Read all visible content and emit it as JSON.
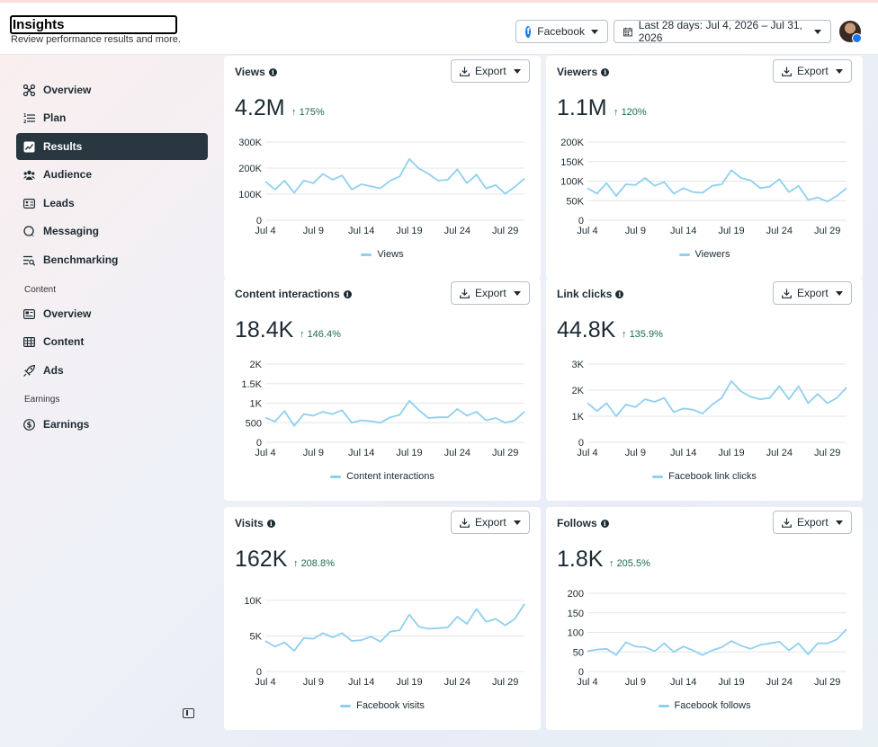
{
  "header": {
    "title": "Insights",
    "subtitle": "Review performance results and more.",
    "platform_label": "Facebook",
    "date_range_label": "Last 28 days: Jul 4, 2026 – Jul 31, 2026"
  },
  "sidebar": {
    "items": [
      {
        "label": "Overview",
        "icon": "overview-icon"
      },
      {
        "label": "Plan",
        "icon": "plan-icon"
      },
      {
        "label": "Results",
        "icon": "results-icon",
        "active": true
      },
      {
        "label": "Audience",
        "icon": "audience-icon"
      },
      {
        "label": "Leads",
        "icon": "leads-icon"
      },
      {
        "label": "Messaging",
        "icon": "messaging-icon"
      },
      {
        "label": "Benchmarking",
        "icon": "benchmarking-icon"
      }
    ],
    "content_section_label": "Content",
    "content_items": [
      {
        "label": "Overview",
        "icon": "content-overview-icon"
      },
      {
        "label": "Content",
        "icon": "content-grid-icon"
      },
      {
        "label": "Ads",
        "icon": "ads-rocket-icon"
      }
    ],
    "earnings_section_label": "Earnings",
    "earnings_items": [
      {
        "label": "Earnings",
        "icon": "dollar-icon"
      }
    ]
  },
  "export_label": "Export",
  "colors": {
    "line": "#8fd0f0",
    "positive": "#1b6e4a",
    "active_nav": "#283640"
  },
  "chart_data": [
    {
      "type": "line",
      "title": "Views",
      "total": "4.2M",
      "change": "175%",
      "x_ticks": [
        "Jul 4",
        "Jul 9",
        "Jul 14",
        "Jul 19",
        "Jul 24",
        "Jul 29"
      ],
      "y_ticks": [
        "0",
        "100K",
        "200K",
        "300K"
      ],
      "ylim": [
        0,
        300000
      ],
      "series": [
        {
          "name": "Views",
          "values": [
            148000,
            118000,
            152000,
            105000,
            152000,
            142000,
            178000,
            155000,
            172000,
            118000,
            138000,
            130000,
            122000,
            152000,
            168000,
            235000,
            198000,
            178000,
            152000,
            155000,
            195000,
            142000,
            175000,
            122000,
            135000,
            102000,
            128000,
            160000
          ]
        }
      ]
    },
    {
      "type": "line",
      "title": "Viewers",
      "total": "1.1M",
      "change": "120%",
      "x_ticks": [
        "Jul 4",
        "Jul 9",
        "Jul 14",
        "Jul 19",
        "Jul 24",
        "Jul 29"
      ],
      "y_ticks": [
        "0",
        "50K",
        "100K",
        "150K",
        "200K"
      ],
      "ylim": [
        0,
        200000
      ],
      "series": [
        {
          "name": "Viewers",
          "values": [
            82000,
            68000,
            95000,
            62000,
            92000,
            90000,
            108000,
            88000,
            98000,
            68000,
            82000,
            72000,
            70000,
            88000,
            92000,
            128000,
            108000,
            102000,
            82000,
            86000,
            105000,
            72000,
            88000,
            52000,
            58000,
            48000,
            62000,
            82000
          ]
        }
      ]
    },
    {
      "type": "line",
      "title": "Content interactions",
      "total": "18.4K",
      "change": "146.4%",
      "x_ticks": [
        "Jul 4",
        "Jul 9",
        "Jul 14",
        "Jul 19",
        "Jul 24",
        "Jul 29"
      ],
      "y_ticks": [
        "0",
        "500",
        "1K",
        "1.5K",
        "2K"
      ],
      "ylim": [
        0,
        2000
      ],
      "series": [
        {
          "name": "Content interactions",
          "values": [
            630,
            530,
            800,
            420,
            720,
            680,
            780,
            720,
            820,
            500,
            560,
            540,
            500,
            640,
            700,
            1060,
            820,
            620,
            640,
            640,
            850,
            680,
            780,
            560,
            620,
            500,
            560,
            780
          ]
        }
      ]
    },
    {
      "type": "line",
      "title": "Link clicks",
      "total": "44.8K",
      "change": "135.9%",
      "x_ticks": [
        "Jul 4",
        "Jul 9",
        "Jul 14",
        "Jul 19",
        "Jul 24",
        "Jul 29"
      ],
      "y_ticks": [
        "0",
        "1K",
        "2K",
        "3K"
      ],
      "ylim": [
        0,
        3000
      ],
      "series": [
        {
          "name": "Facebook link clicks",
          "values": [
            1500,
            1200,
            1500,
            1000,
            1450,
            1350,
            1650,
            1550,
            1700,
            1150,
            1300,
            1250,
            1100,
            1450,
            1700,
            2350,
            1950,
            1750,
            1650,
            1700,
            2150,
            1650,
            2150,
            1500,
            1850,
            1500,
            1700,
            2100
          ]
        }
      ]
    },
    {
      "type": "line",
      "title": "Visits",
      "total": "162K",
      "change": "208.8%",
      "x_ticks": [
        "Jul 4",
        "Jul 9",
        "Jul 14",
        "Jul 19",
        "Jul 24",
        "Jul 29"
      ],
      "y_ticks": [
        "0",
        "5K",
        "10K"
      ],
      "ylim": [
        0,
        11000
      ],
      "series": [
        {
          "name": "Facebook visits",
          "values": [
            4300,
            3500,
            4100,
            2900,
            4700,
            4600,
            5400,
            4800,
            5400,
            4300,
            4400,
            4900,
            4200,
            5600,
            5800,
            8000,
            6300,
            6000,
            6100,
            6200,
            7700,
            6700,
            8800,
            7000,
            7400,
            6500,
            7400,
            9500
          ]
        }
      ]
    },
    {
      "type": "line",
      "title": "Follows",
      "total": "1.8K",
      "change": "205.5%",
      "x_ticks": [
        "Jul 4",
        "Jul 9",
        "Jul 14",
        "Jul 19",
        "Jul 24",
        "Jul 29"
      ],
      "y_ticks": [
        "0",
        "50",
        "100",
        "150",
        "200"
      ],
      "ylim": [
        0,
        200
      ],
      "series": [
        {
          "name": "Facebook follows",
          "values": [
            52,
            56,
            58,
            42,
            75,
            64,
            62,
            52,
            72,
            50,
            64,
            54,
            42,
            54,
            62,
            78,
            66,
            58,
            68,
            72,
            76,
            54,
            72,
            44,
            72,
            72,
            82,
            108
          ]
        }
      ]
    }
  ]
}
